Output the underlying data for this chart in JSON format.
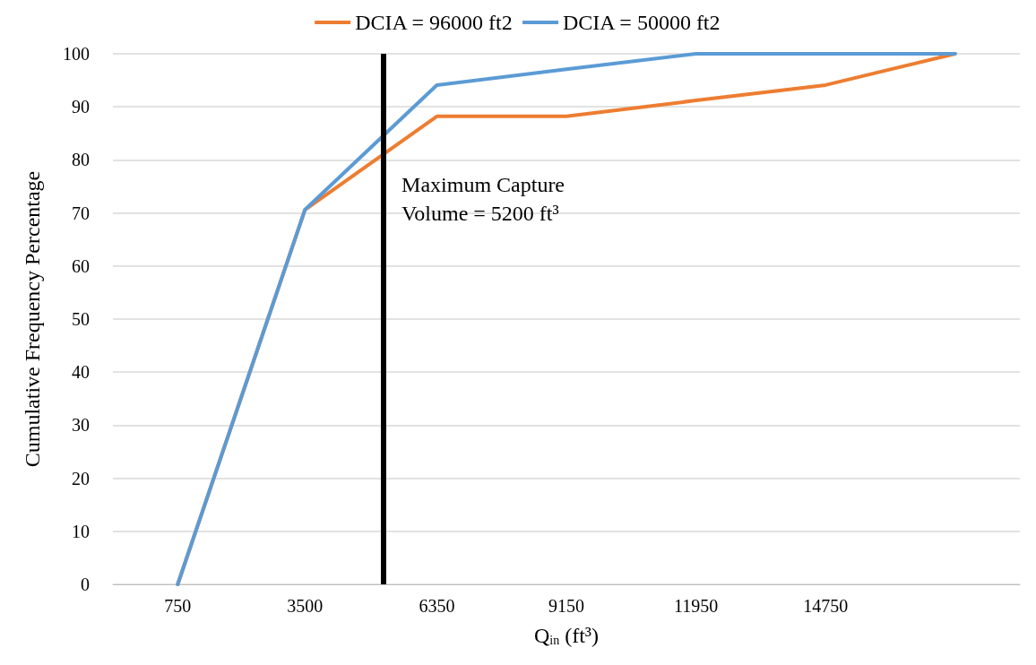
{
  "chart_data": {
    "type": "line",
    "x": [
      750,
      3500,
      6350,
      9150,
      11950,
      14750,
      17550
    ],
    "xlabel": "Q$_{in}$ (ft³)",
    "ylabel": "Cumulative Frequency Percentage",
    "series": [
      {
        "name": "DCIA = 96000 ft2",
        "color": "#ed7d31",
        "values": [
          0,
          70.6,
          88.2,
          88.2,
          91.2,
          94.1,
          100
        ]
      },
      {
        "name": "DCIA = 50000 ft2",
        "color": "#5b9bd5",
        "values": [
          0,
          70.6,
          94.1,
          97.1,
          100,
          100,
          100
        ]
      }
    ],
    "xlim": [
      -650,
      18950
    ],
    "xticks": [
      750,
      3500,
      6350,
      9150,
      11950,
      14750
    ],
    "ylim": [
      0,
      100
    ],
    "yticks": [
      0,
      10,
      20,
      30,
      40,
      50,
      60,
      70,
      80,
      90,
      100
    ],
    "ref_lines": [
      {
        "axis": "x",
        "value": 5200,
        "label": "Maximum Capture\nVolume = 5200 ft³",
        "color": "#000000"
      }
    ],
    "grid": "y",
    "legend": "top",
    "marker": "none",
    "line_style": "solid"
  }
}
